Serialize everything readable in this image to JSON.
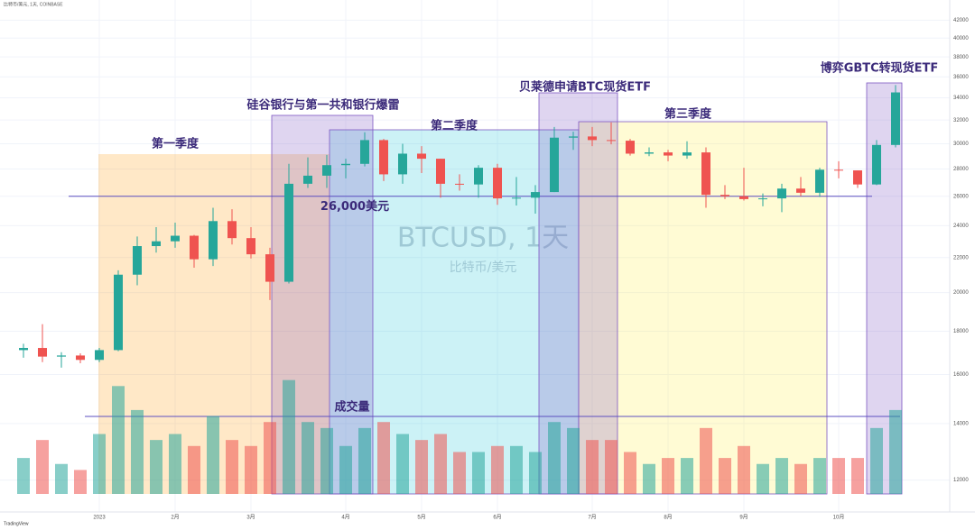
{
  "chart_data": {
    "type": "candlestick",
    "title": "BTCUSD, 1天",
    "subtitle": "比特币/美元",
    "header": "比特币/美元, 1天, COINBASE",
    "footer": "TradingView",
    "categories": [
      null,
      null,
      null,
      null,
      "2023",
      null,
      null,
      null,
      "2月",
      null,
      null,
      null,
      "3月",
      null,
      null,
      null,
      null,
      "4月",
      null,
      null,
      null,
      "5月",
      null,
      null,
      null,
      "6月",
      null,
      null,
      null,
      null,
      "7月",
      null,
      null,
      null,
      "8月",
      null,
      null,
      null,
      "9月",
      null,
      null,
      null,
      null,
      "10月",
      null,
      null,
      null
    ],
    "open": [
      17100,
      17200,
      16800,
      16850,
      16650,
      17100,
      21000,
      22700,
      23000,
      23350,
      21900,
      24300,
      23200,
      22200,
      20600,
      26900,
      27500,
      28300,
      28400,
      30300,
      27600,
      29200,
      28800,
      26900,
      26850,
      28100,
      25850,
      25900,
      26300,
      30500,
      30600,
      30300,
      30250,
      29200,
      29300,
      29050,
      29300,
      26100,
      26000,
      25800,
      25850,
      26550,
      26250,
      27950,
      27900,
      26850,
      29900
    ],
    "high": [
      17400,
      18350,
      17000,
      16950,
      17200,
      21250,
      23300,
      23900,
      24200,
      23400,
      25200,
      25100,
      23900,
      22600,
      28400,
      28900,
      29100,
      28800,
      30950,
      30400,
      30000,
      29800,
      28800,
      27600,
      28300,
      28400,
      27400,
      26800,
      31400,
      31000,
      31400,
      31800,
      30400,
      29700,
      29500,
      30200,
      29700,
      26800,
      28100,
      26200,
      26900,
      27400,
      28100,
      28600,
      27900,
      30300,
      35200
    ],
    "low": [
      16750,
      16550,
      16300,
      16500,
      16550,
      17050,
      20400,
      22300,
      22600,
      21400,
      21500,
      22800,
      21950,
      19600,
      20500,
      26600,
      26600,
      27300,
      28200,
      27100,
      26900,
      27700,
      25900,
      26400,
      25900,
      25400,
      25350,
      24800,
      26300,
      29500,
      29800,
      29950,
      29050,
      29000,
      28600,
      28800,
      25200,
      25800,
      25700,
      25300,
      24900,
      26000,
      25950,
      27300,
      26600,
      26800,
      29700
    ],
    "close": [
      17200,
      16800,
      16850,
      16650,
      17100,
      21000,
      22700,
      23000,
      23350,
      21900,
      24300,
      23200,
      22200,
      20600,
      26900,
      27500,
      28300,
      28400,
      30300,
      27600,
      29200,
      28800,
      26900,
      26850,
      28100,
      25850,
      25900,
      26300,
      30500,
      30600,
      30300,
      30250,
      29200,
      29300,
      29050,
      29300,
      26100,
      26000,
      25800,
      25850,
      26550,
      26250,
      27950,
      27900,
      26850,
      29900,
      34500
    ],
    "up_color": "#26a69a",
    "down_color": "#ef5350",
    "volume": {
      "name": "成交量",
      "values": [
        30,
        45,
        25,
        20,
        50,
        90,
        70,
        45,
        50,
        40,
        65,
        45,
        40,
        60,
        95,
        60,
        55,
        40,
        55,
        60,
        50,
        45,
        50,
        35,
        35,
        40,
        40,
        35,
        60,
        55,
        45,
        45,
        35,
        25,
        30,
        30,
        55,
        30,
        40,
        25,
        30,
        25,
        30,
        30,
        30,
        55,
        70
      ],
      "vlim": [
        0,
        100
      ]
    },
    "ylim": [
      11500,
      43300
    ],
    "yticks": [
      12000,
      14000,
      16000,
      18000,
      20000,
      22000,
      24000,
      26000,
      28000,
      30000,
      32000,
      34000,
      36000,
      38000,
      40000,
      42000
    ],
    "log_scale": true,
    "grid": true,
    "hline": {
      "value": 26000,
      "label": "26,000美元"
    },
    "annotations": [
      "第一季度",
      "硅谷银行与第一共和银行爆雷",
      "第二季度",
      "贝莱德申请BTC现货ETF",
      "第三季度",
      "博弈GBTC转现货ETF"
    ]
  }
}
